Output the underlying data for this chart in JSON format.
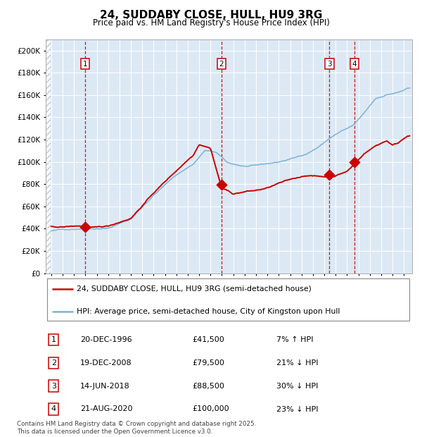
{
  "title": "24, SUDDABY CLOSE, HULL, HU9 3RG",
  "subtitle": "Price paid vs. HM Land Registry's House Price Index (HPI)",
  "bg_color": "#dce9f5",
  "hpi_color": "#7ab3d9",
  "price_color": "#cc0000",
  "legend1": "24, SUDDABY CLOSE, HULL, HU9 3RG (semi-detached house)",
  "legend2": "HPI: Average price, semi-detached house, City of Kingston upon Hull",
  "transactions": [
    {
      "num": 1,
      "date": "20-DEC-1996",
      "price": 41500,
      "pct": "7%",
      "dir": "↑"
    },
    {
      "num": 2,
      "date": "19-DEC-2008",
      "price": 79500,
      "pct": "21%",
      "dir": "↓"
    },
    {
      "num": 3,
      "date": "14-JUN-2018",
      "price": 88500,
      "pct": "30%",
      "dir": "↓"
    },
    {
      "num": 4,
      "date": "21-AUG-2020",
      "price": 100000,
      "pct": "23%",
      "dir": "↓"
    }
  ],
  "transaction_years": [
    1996.97,
    2008.97,
    2018.45,
    2020.64
  ],
  "transaction_prices": [
    41500,
    79500,
    88500,
    100000
  ],
  "footer": "Contains HM Land Registry data © Crown copyright and database right 2025.\nThis data is licensed under the Open Government Licence v3.0.",
  "ylim": [
    0,
    210000
  ],
  "yticks": [
    0,
    20000,
    40000,
    60000,
    80000,
    100000,
    120000,
    140000,
    160000,
    180000,
    200000
  ],
  "xmin": 1993.5,
  "xmax": 2025.7
}
